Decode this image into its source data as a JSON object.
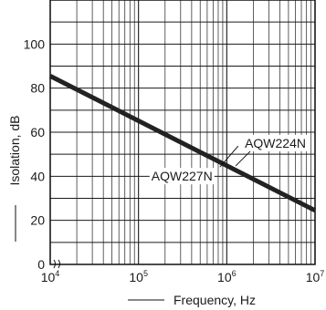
{
  "chart_data": {
    "type": "line",
    "xlabel": "Frequency, Hz",
    "ylabel": "Isolation, dB",
    "x_scale": "log",
    "xlim": [
      10000,
      10000000
    ],
    "ylim": [
      0,
      120
    ],
    "x_ticks": [
      {
        "value": 10000,
        "base": "10",
        "exp": "4"
      },
      {
        "value": 100000,
        "base": "10",
        "exp": "5"
      },
      {
        "value": 1000000,
        "base": "10",
        "exp": "6"
      },
      {
        "value": 10000000,
        "base": "10",
        "exp": "7"
      }
    ],
    "y_ticks": [
      {
        "value": 0,
        "label": "0"
      },
      {
        "value": 20,
        "label": "20"
      },
      {
        "value": 40,
        "label": "40"
      },
      {
        "value": 60,
        "label": "60"
      },
      {
        "value": 80,
        "label": "80"
      },
      {
        "value": 100,
        "label": "100"
      }
    ],
    "grid": true,
    "series": [
      {
        "name": "AQW224N",
        "x": [
          10000,
          10000000
        ],
        "y": [
          85.5,
          24.5
        ]
      },
      {
        "name": "AQW227N",
        "x": [
          10000,
          10000000
        ],
        "y": [
          85.5,
          24.5
        ]
      }
    ],
    "annotations": [
      {
        "text": "AQW224N",
        "x": 1600000,
        "y": 53
      },
      {
        "text": "AQW227N",
        "x": 140000,
        "y": 38
      }
    ],
    "line_color": "#222222"
  }
}
